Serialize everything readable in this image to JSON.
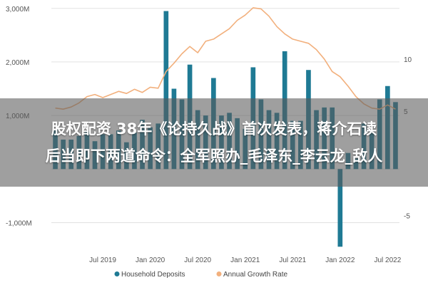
{
  "colors": {
    "bars": "#1f7a94",
    "line": "#f2b07d",
    "grid": "#e2e2e2",
    "banner_bg": "rgba(90,90,90,0.58)",
    "banner_text": "#ffffff"
  },
  "banner": {
    "line1": "股权配资 38年《论持久战》首次发表，蒋介石读",
    "line2": "后当即下两道命令：全军照办_毛泽东_李云龙_敌人"
  },
  "chart_data": {
    "type": "bar",
    "y_left": {
      "ticks": [
        -1000,
        0,
        1000,
        2000,
        3000
      ],
      "tick_labels": [
        "-1,000M",
        "",
        "1,000M",
        "2,000M",
        "3,000M"
      ],
      "ylim": [
        -1300,
        3050
      ]
    },
    "y_right": {
      "ticks": [
        -5,
        5,
        10
      ],
      "tick_labels": [
        "-5",
        "5",
        "10"
      ],
      "ylim": [
        -7.2,
        15.1
      ]
    },
    "x_axis": {
      "labels": [
        "Jul 2019",
        "Jan 2020",
        "Jul 2020",
        "Jan 2021",
        "Jul 2021",
        "Jan 2022",
        "Jul 2022"
      ],
      "label_months": [
        6,
        12,
        18,
        24,
        30,
        36,
        42
      ]
    },
    "series": [
      {
        "name": "Household Deposits",
        "kind": "bar",
        "months": [
          0,
          1,
          2,
          3,
          4,
          5,
          6,
          7,
          8,
          9,
          10,
          11,
          12,
          13,
          14,
          15,
          16,
          17,
          18,
          19,
          20,
          21,
          22,
          23,
          24,
          25,
          26,
          27,
          28,
          29,
          30,
          31,
          32,
          33,
          34,
          35,
          36,
          37,
          38,
          39,
          40,
          41,
          42,
          43
        ],
        "values": [
          750,
          550,
          550,
          620,
          700,
          520,
          650,
          650,
          720,
          500,
          680,
          920,
          780,
          850,
          2950,
          1500,
          1300,
          1950,
          1100,
          1000,
          1700,
          1000,
          1050,
          950,
          750,
          1900,
          1300,
          1100,
          1050,
          2200,
          900,
          900,
          1850,
          1100,
          1150,
          1150,
          -1450,
          300,
          200,
          850,
          700,
          1300,
          1550,
          1250
        ]
      },
      {
        "name": "Annual Growth Rate",
        "kind": "line",
        "months": [
          0,
          1,
          2,
          3,
          4,
          5,
          6,
          7,
          8,
          9,
          10,
          11,
          12,
          13,
          14,
          15,
          16,
          17,
          18,
          19,
          20,
          21,
          22,
          23,
          24,
          25,
          26,
          27,
          28,
          29,
          30,
          31,
          32,
          33,
          34,
          35,
          36,
          37,
          38,
          39,
          40,
          41,
          42,
          43
        ],
        "values": [
          5.3,
          5.2,
          5.4,
          5.8,
          6.4,
          6.6,
          6.3,
          6.6,
          6.9,
          6.7,
          7.1,
          6.8,
          7.3,
          7.2,
          8.8,
          9.6,
          10.5,
          11.2,
          10.6,
          11.7,
          11.9,
          12.4,
          12.9,
          13.7,
          14.2,
          14.9,
          14.8,
          14.1,
          13.1,
          12.4,
          11.9,
          11.7,
          11.5,
          10.9,
          10.0,
          8.8,
          8.3,
          7.4,
          6.4,
          5.7,
          5.3,
          5.2,
          5.6,
          5.2
        ]
      }
    ],
    "legend": {
      "position": "bottom",
      "entries": [
        "Household Deposits",
        "Annual Growth Rate"
      ]
    },
    "grid": true
  }
}
